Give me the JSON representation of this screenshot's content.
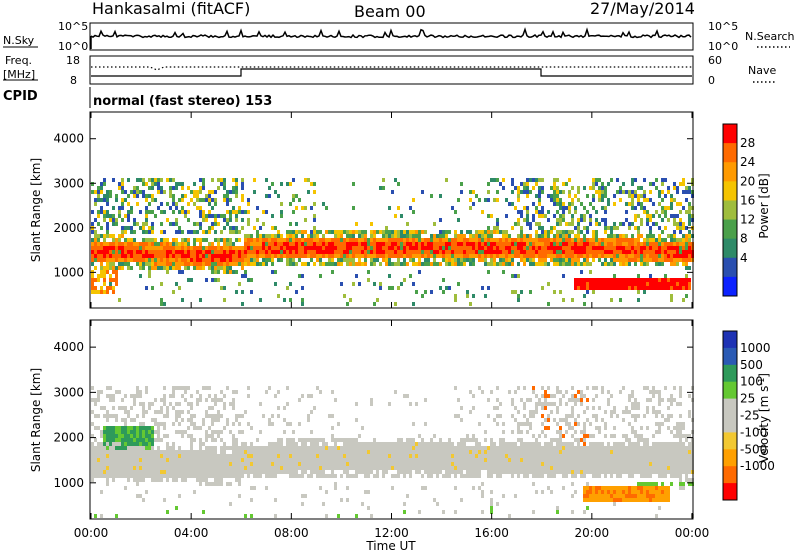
{
  "header": {
    "station": "Hankasalmi (fitACF)",
    "beam": "Beam 00",
    "date": "27/May/2014"
  },
  "panels": {
    "nsky": {
      "left_label": "N.Sky",
      "right_label": "N.Search",
      "left_ticks": [
        "10^5",
        "10^0"
      ],
      "right_ticks": [
        "10^5",
        "10^0"
      ]
    },
    "freq": {
      "left_label_1": "Freq.",
      "left_label_2": "[MHz]",
      "right_label": "Nave",
      "left_ticks": [
        "18",
        "8"
      ],
      "right_ticks": [
        "60",
        "0"
      ]
    },
    "cpid": {
      "label": "CPID",
      "text": "normal (fast stereo) 153"
    }
  },
  "colors": {
    "power": [
      "#ff0000",
      "#ff6a00",
      "#ff9a00",
      "#f5c400",
      "#9fbd3c",
      "#4aa04a",
      "#2e8a68",
      "#2a4fb0",
      "#0c22ff"
    ],
    "velocity": [
      "#ff0000",
      "#ff6a00",
      "#ffa000",
      "#f2c832",
      "#c8c8c0",
      "#c8c8c0",
      "#64c832",
      "#2e9a5a",
      "#2a5ab4",
      "#1e32b4"
    ]
  },
  "chart_data": [
    {
      "type": "heatmap",
      "title": "",
      "quantity": "Power",
      "xlabel": "",
      "ylabel": "Slant Range [km]",
      "xlim": [
        "00:00",
        "24:00"
      ],
      "ylim": [
        200,
        4600
      ],
      "y_ticks": [
        "4000",
        "3000",
        "2000",
        "1000"
      ],
      "colorbar": {
        "label": "Power [dB]",
        "range": [
          0,
          32
        ],
        "tick_labels": [
          "28",
          "24",
          "20",
          "16",
          "12",
          "8",
          "4"
        ]
      },
      "features": [
        {
          "name": "main scatter band",
          "range_km": [
            1300,
            1900
          ],
          "start": "00:00",
          "end": "24:00",
          "level_db": 24
        },
        {
          "name": "upper patchy scatter",
          "range_km": [
            2000,
            3100
          ],
          "start": "00:00",
          "end": "24:00",
          "level_db": 10
        },
        {
          "name": "near-range echoes",
          "range_km": [
            600,
            900
          ],
          "start": "19:00",
          "end": "24:00",
          "level_db": 28
        }
      ]
    },
    {
      "type": "heatmap",
      "title": "",
      "quantity": "Velocity",
      "xlabel": "Time UT",
      "ylabel": "Slant Range [km]",
      "xlim": [
        "00:00",
        "24:00"
      ],
      "x_ticks": [
        "00:00",
        "04:00",
        "08:00",
        "12:00",
        "16:00",
        "20:00",
        "00:00"
      ],
      "ylim": [
        200,
        4600
      ],
      "y_ticks": [
        "4000",
        "3000",
        "2000",
        "1000"
      ],
      "colorbar": {
        "label": "Velocity [m s^-1]",
        "tick_labels": [
          "1000",
          "500",
          "100",
          "25",
          "-25",
          "-100",
          "-500",
          "-1000"
        ]
      },
      "features": [
        {
          "name": "ground scatter band",
          "range_km": [
            1300,
            1900
          ],
          "start": "00:00",
          "end": "24:00",
          "velocity": 0
        },
        {
          "name": "early positive patch",
          "range_km": [
            1800,
            2300
          ],
          "start": "00:30",
          "end": "02:30",
          "velocity": 300
        },
        {
          "name": "near-range negative echoes",
          "range_km": [
            600,
            900
          ],
          "start": "19:30",
          "end": "23:00",
          "velocity": -300
        }
      ]
    }
  ]
}
